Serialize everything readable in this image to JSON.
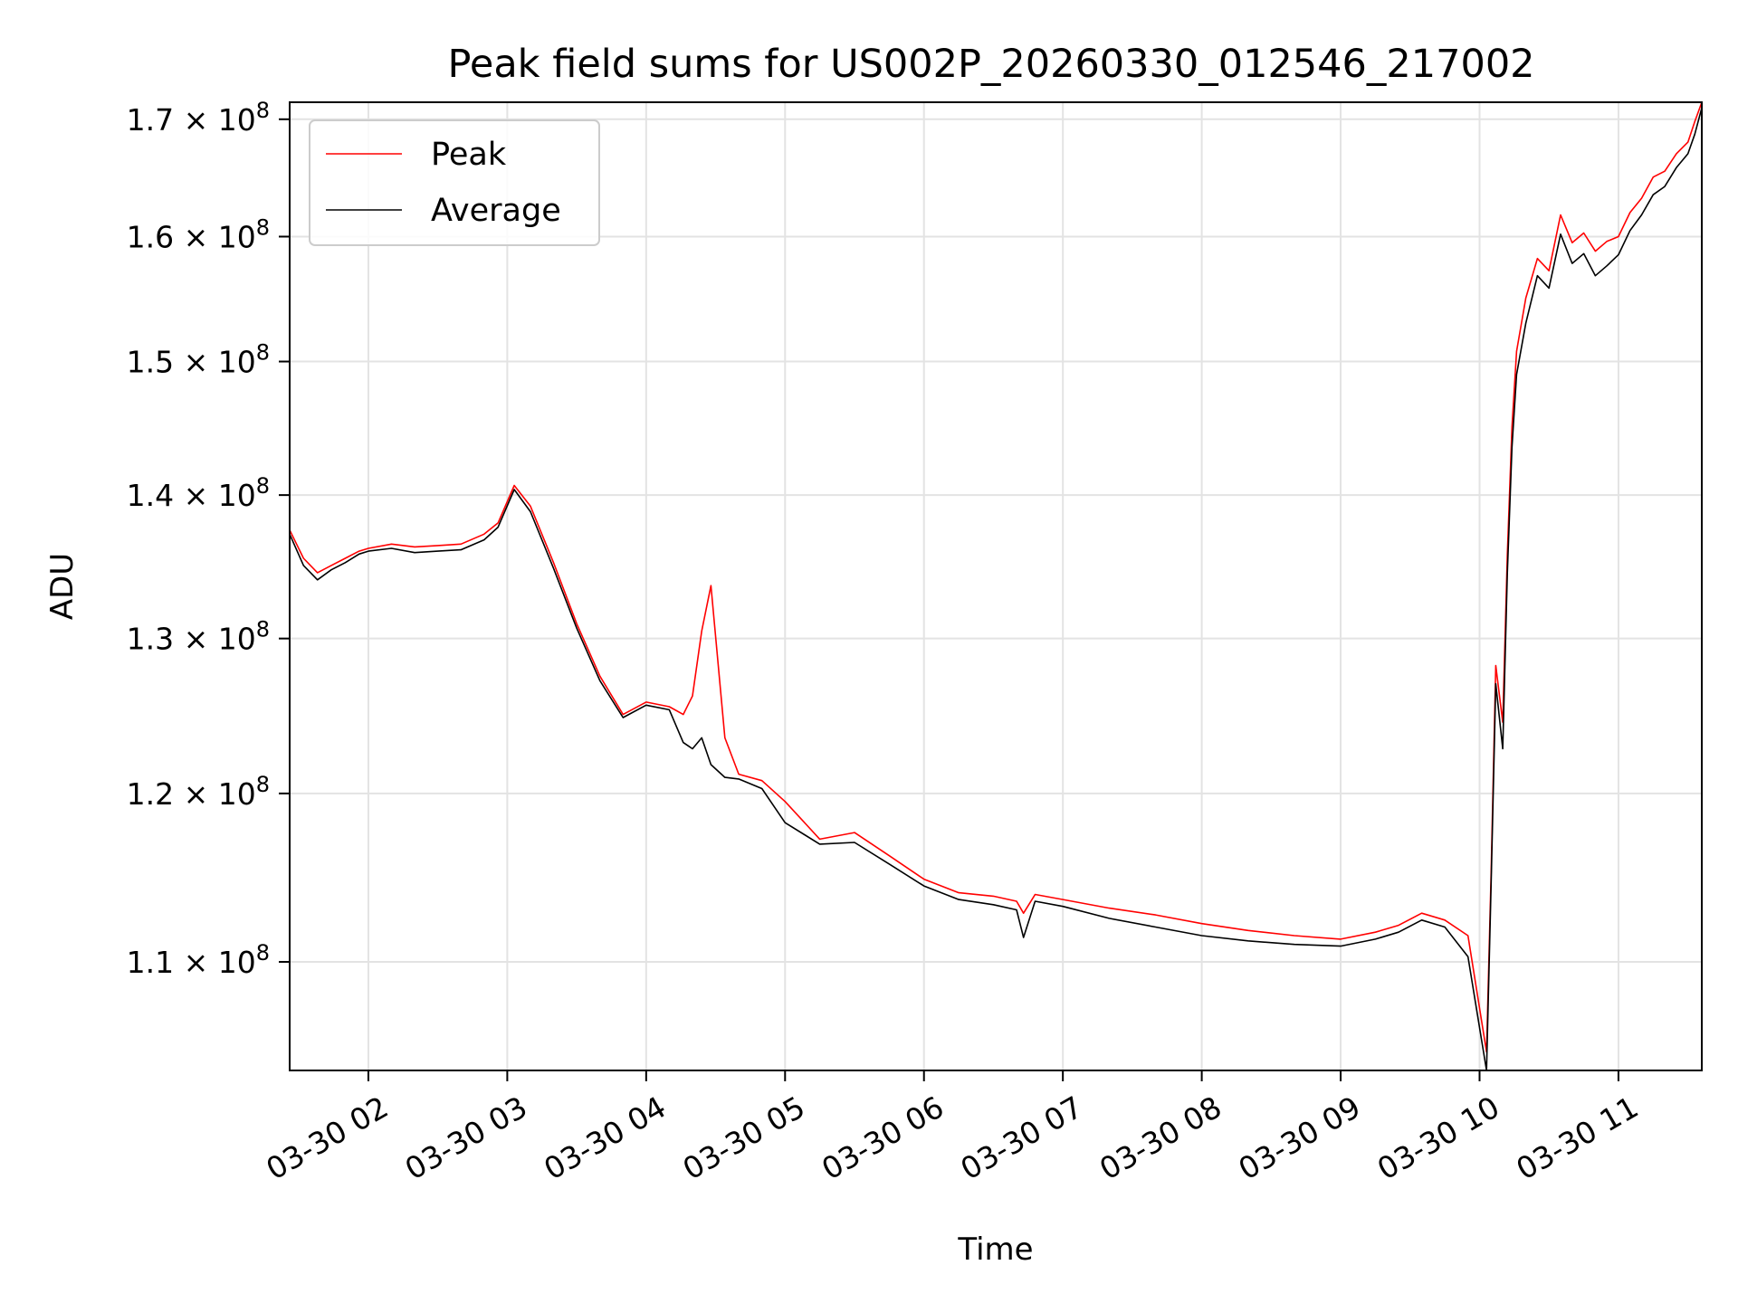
{
  "chart_data": {
    "type": "line",
    "title": "Peak field sums for US002P_20260330_012546_217002",
    "xlabel": "Time",
    "ylabel": "ADU",
    "yscale": "log",
    "xlim": [
      "2026-03-30 01:26",
      "2026-03-30 11:36"
    ],
    "ylim": [
      104000000,
      171500000
    ],
    "grid": true,
    "legend_position": "top-left",
    "x_ticks": [
      {
        "at": "2026-03-30 02:00",
        "label": "03-30 02"
      },
      {
        "at": "2026-03-30 03:00",
        "label": "03-30 03"
      },
      {
        "at": "2026-03-30 04:00",
        "label": "03-30 04"
      },
      {
        "at": "2026-03-30 05:00",
        "label": "03-30 05"
      },
      {
        "at": "2026-03-30 06:00",
        "label": "03-30 06"
      },
      {
        "at": "2026-03-30 07:00",
        "label": "03-30 07"
      },
      {
        "at": "2026-03-30 08:00",
        "label": "03-30 08"
      },
      {
        "at": "2026-03-30 09:00",
        "label": "03-30 09"
      },
      {
        "at": "2026-03-30 10:00",
        "label": "03-30 10"
      },
      {
        "at": "2026-03-30 11:00",
        "label": "03-30 11"
      }
    ],
    "y_ticks": [
      {
        "value": 110000000,
        "mantissa": "1.1",
        "base": "× 10",
        "exponent": "8"
      },
      {
        "value": 120000000,
        "mantissa": "1.2",
        "base": "× 10",
        "exponent": "8"
      },
      {
        "value": 130000000,
        "mantissa": "1.3",
        "base": "× 10",
        "exponent": "8"
      },
      {
        "value": 140000000,
        "mantissa": "1.4",
        "base": "× 10",
        "exponent": "8"
      },
      {
        "value": 150000000,
        "mantissa": "1.5",
        "base": "× 10",
        "exponent": "8"
      },
      {
        "value": 160000000,
        "mantissa": "1.6",
        "base": "× 10",
        "exponent": "8"
      },
      {
        "value": 170000000,
        "mantissa": "1.7",
        "base": "× 10",
        "exponent": "8"
      }
    ],
    "series": [
      {
        "name": "Peak",
        "color": "#ff0000",
        "x": [
          "2026-03-30 01:26",
          "2026-03-30 01:32",
          "2026-03-30 01:38",
          "2026-03-30 01:44",
          "2026-03-30 01:50",
          "2026-03-30 01:56",
          "2026-03-30 02:00",
          "2026-03-30 02:10",
          "2026-03-30 02:20",
          "2026-03-30 02:30",
          "2026-03-30 02:40",
          "2026-03-30 02:50",
          "2026-03-30 02:56",
          "2026-03-30 03:03",
          "2026-03-30 03:10",
          "2026-03-30 03:20",
          "2026-03-30 03:30",
          "2026-03-30 03:40",
          "2026-03-30 03:50",
          "2026-03-30 04:00",
          "2026-03-30 04:10",
          "2026-03-30 04:16",
          "2026-03-30 04:20",
          "2026-03-30 04:24",
          "2026-03-30 04:28",
          "2026-03-30 04:34",
          "2026-03-30 04:40",
          "2026-03-30 04:50",
          "2026-03-30 05:00",
          "2026-03-30 05:15",
          "2026-03-30 05:30",
          "2026-03-30 05:45",
          "2026-03-30 06:00",
          "2026-03-30 06:15",
          "2026-03-30 06:30",
          "2026-03-30 06:40",
          "2026-03-30 06:43",
          "2026-03-30 06:48",
          "2026-03-30 07:00",
          "2026-03-30 07:20",
          "2026-03-30 07:40",
          "2026-03-30 08:00",
          "2026-03-30 08:20",
          "2026-03-30 08:40",
          "2026-03-30 09:00",
          "2026-03-30 09:15",
          "2026-03-30 09:25",
          "2026-03-30 09:35",
          "2026-03-30 09:45",
          "2026-03-30 09:55",
          "2026-03-30 10:03",
          "2026-03-30 10:05",
          "2026-03-30 10:07",
          "2026-03-30 10:10",
          "2026-03-30 10:12",
          "2026-03-30 10:14",
          "2026-03-30 10:16",
          "2026-03-30 10:20",
          "2026-03-30 10:25",
          "2026-03-30 10:30",
          "2026-03-30 10:35",
          "2026-03-30 10:40",
          "2026-03-30 10:45",
          "2026-03-30 10:50",
          "2026-03-30 10:55",
          "2026-03-30 11:00",
          "2026-03-30 11:05",
          "2026-03-30 11:10",
          "2026-03-30 11:15",
          "2026-03-30 11:20",
          "2026-03-30 11:25",
          "2026-03-30 11:30",
          "2026-03-30 11:33",
          "2026-03-30 11:36"
        ],
        "values": [
          137500000,
          135500000,
          134500000,
          135000000,
          135500000,
          136000000,
          136200000,
          136500000,
          136300000,
          136400000,
          136500000,
          137200000,
          138000000,
          140700000,
          139200000,
          135200000,
          131000000,
          127500000,
          125000000,
          125800000,
          125500000,
          125000000,
          126200000,
          130500000,
          133600000,
          123500000,
          121200000,
          120800000,
          119500000,
          117200000,
          117600000,
          116200000,
          114800000,
          114000000,
          113800000,
          113500000,
          112800000,
          113900000,
          113600000,
          113100000,
          112700000,
          112200000,
          111800000,
          111500000,
          111300000,
          111700000,
          112100000,
          112800000,
          112400000,
          111500000,
          105000000,
          115200000,
          128200000,
          124500000,
          135800000,
          145000000,
          150800000,
          155000000,
          158200000,
          157200000,
          161800000,
          159500000,
          160300000,
          158800000,
          159600000,
          160000000,
          162000000,
          163200000,
          165000000,
          165500000,
          167000000,
          168000000,
          169800000,
          171500000
        ]
      },
      {
        "name": "Average",
        "color": "#000000",
        "x": [
          "2026-03-30 01:26",
          "2026-03-30 01:32",
          "2026-03-30 01:38",
          "2026-03-30 01:44",
          "2026-03-30 01:50",
          "2026-03-30 01:56",
          "2026-03-30 02:00",
          "2026-03-30 02:10",
          "2026-03-30 02:20",
          "2026-03-30 02:30",
          "2026-03-30 02:40",
          "2026-03-30 02:50",
          "2026-03-30 02:56",
          "2026-03-30 03:03",
          "2026-03-30 03:10",
          "2026-03-30 03:20",
          "2026-03-30 03:30",
          "2026-03-30 03:40",
          "2026-03-30 03:50",
          "2026-03-30 04:00",
          "2026-03-30 04:10",
          "2026-03-30 04:16",
          "2026-03-30 04:20",
          "2026-03-30 04:24",
          "2026-03-30 04:28",
          "2026-03-30 04:34",
          "2026-03-30 04:40",
          "2026-03-30 04:50",
          "2026-03-30 05:00",
          "2026-03-30 05:15",
          "2026-03-30 05:30",
          "2026-03-30 05:45",
          "2026-03-30 06:00",
          "2026-03-30 06:15",
          "2026-03-30 06:30",
          "2026-03-30 06:40",
          "2026-03-30 06:43",
          "2026-03-30 06:48",
          "2026-03-30 07:00",
          "2026-03-30 07:20",
          "2026-03-30 07:40",
          "2026-03-30 08:00",
          "2026-03-30 08:20",
          "2026-03-30 08:40",
          "2026-03-30 09:00",
          "2026-03-30 09:15",
          "2026-03-30 09:25",
          "2026-03-30 09:35",
          "2026-03-30 09:45",
          "2026-03-30 09:55",
          "2026-03-30 10:03",
          "2026-03-30 10:05",
          "2026-03-30 10:07",
          "2026-03-30 10:10",
          "2026-03-30 10:12",
          "2026-03-30 10:14",
          "2026-03-30 10:16",
          "2026-03-30 10:20",
          "2026-03-30 10:25",
          "2026-03-30 10:30",
          "2026-03-30 10:35",
          "2026-03-30 10:40",
          "2026-03-30 10:45",
          "2026-03-30 10:50",
          "2026-03-30 10:55",
          "2026-03-30 11:00",
          "2026-03-30 11:05",
          "2026-03-30 11:10",
          "2026-03-30 11:15",
          "2026-03-30 11:20",
          "2026-03-30 11:25",
          "2026-03-30 11:30",
          "2026-03-30 11:33",
          "2026-03-30 11:36"
        ],
        "values": [
          137200000,
          135000000,
          134000000,
          134700000,
          135200000,
          135800000,
          136000000,
          136200000,
          135900000,
          136000000,
          136100000,
          136800000,
          137700000,
          140400000,
          138800000,
          134800000,
          130700000,
          127200000,
          124800000,
          125600000,
          125300000,
          123200000,
          122800000,
          123500000,
          121800000,
          121000000,
          120900000,
          120300000,
          118200000,
          116900000,
          117000000,
          115700000,
          114400000,
          113600000,
          113300000,
          113000000,
          111400000,
          113500000,
          113200000,
          112500000,
          112000000,
          111500000,
          111200000,
          111000000,
          110900000,
          111300000,
          111700000,
          112400000,
          112000000,
          110300000,
          104000000,
          114600000,
          127000000,
          122800000,
          134500000,
          143500000,
          149000000,
          153000000,
          156800000,
          155800000,
          160200000,
          157800000,
          158600000,
          156800000,
          157600000,
          158500000,
          160500000,
          161800000,
          163500000,
          164200000,
          165800000,
          167000000,
          168700000,
          171000000
        ]
      }
    ]
  }
}
